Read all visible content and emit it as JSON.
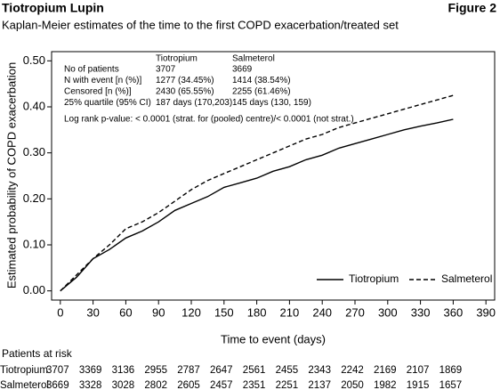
{
  "chart_data": {
    "type": "line",
    "title": "Tiotropium Lupin",
    "figure_label": "Figure 2",
    "subtitle": "Kaplan-Meier estimates of the time to the first COPD exacerbation/treated set",
    "x_label": "Time to event (days)",
    "y_label": "Estimated probability of COPD exacerbation",
    "x": [
      0,
      15,
      30,
      45,
      60,
      75,
      90,
      105,
      120,
      135,
      150,
      165,
      180,
      195,
      210,
      225,
      240,
      255,
      270,
      285,
      300,
      315,
      330,
      345,
      360
    ],
    "series": [
      {
        "name": "Tiotropium",
        "color": "#000000",
        "dashed": false,
        "values": [
          0,
          0.03,
          0.07,
          0.09,
          0.115,
          0.13,
          0.15,
          0.175,
          0.19,
          0.205,
          0.225,
          0.235,
          0.245,
          0.26,
          0.27,
          0.285,
          0.295,
          0.31,
          0.32,
          0.33,
          0.34,
          0.35,
          0.358,
          0.365,
          0.373
        ]
      },
      {
        "name": "Salmeterol",
        "color": "#000000",
        "dashed": true,
        "values": [
          0,
          0.035,
          0.07,
          0.1,
          0.135,
          0.15,
          0.17,
          0.195,
          0.22,
          0.24,
          0.255,
          0.27,
          0.285,
          0.3,
          0.315,
          0.33,
          0.34,
          0.355,
          0.365,
          0.375,
          0.385,
          0.395,
          0.405,
          0.415,
          0.425
        ]
      }
    ],
    "xlim": [
      -8,
      398
    ],
    "ylim": [
      -0.02,
      0.52
    ],
    "xticks": [
      0,
      30,
      60,
      90,
      120,
      150,
      180,
      210,
      240,
      270,
      300,
      330,
      360,
      390
    ],
    "yticks": [
      {
        "value": 0,
        "label": "0.00"
      },
      {
        "value": 0.1,
        "label": "0.10"
      },
      {
        "value": 0.2,
        "label": "0.20"
      },
      {
        "value": 0.3,
        "label": "0.30"
      },
      {
        "value": 0.4,
        "label": "0.40"
      },
      {
        "value": 0.5,
        "label": "0.50"
      }
    ],
    "legend": "bottom-right",
    "stats_table": {
      "columns": [
        "Tiotropium",
        "Salmeterol"
      ],
      "rows": [
        [
          "No of patients",
          "3707",
          "3669"
        ],
        [
          "N with event [n (%)]",
          "1277 (34.45%)",
          "1414 (38.54%)"
        ],
        [
          "Censored [n (%)]",
          "2430 (65.55%)",
          "2255 (61.46%)"
        ],
        [
          "25% quartile (95% CI)",
          "187 days (170,203)",
          "145 days (130, 159)"
        ]
      ],
      "note": "Log rank p-value: < 0.0001 (strat. for (pooled) centre)/< 0.0001 (not strat.)"
    },
    "at_risk": {
      "title": "Patients at risk",
      "rows": [
        {
          "name": "Tiotropium",
          "values": [
            3707,
            3369,
            3136,
            2955,
            2787,
            2647,
            2561,
            2455,
            2343,
            2242,
            2169,
            2107,
            1869
          ]
        },
        {
          "name": "Salmeterol",
          "values": [
            3669,
            3328,
            3028,
            2802,
            2605,
            2457,
            2351,
            2251,
            2137,
            2050,
            1982,
            1915,
            1657
          ]
        }
      ]
    }
  }
}
